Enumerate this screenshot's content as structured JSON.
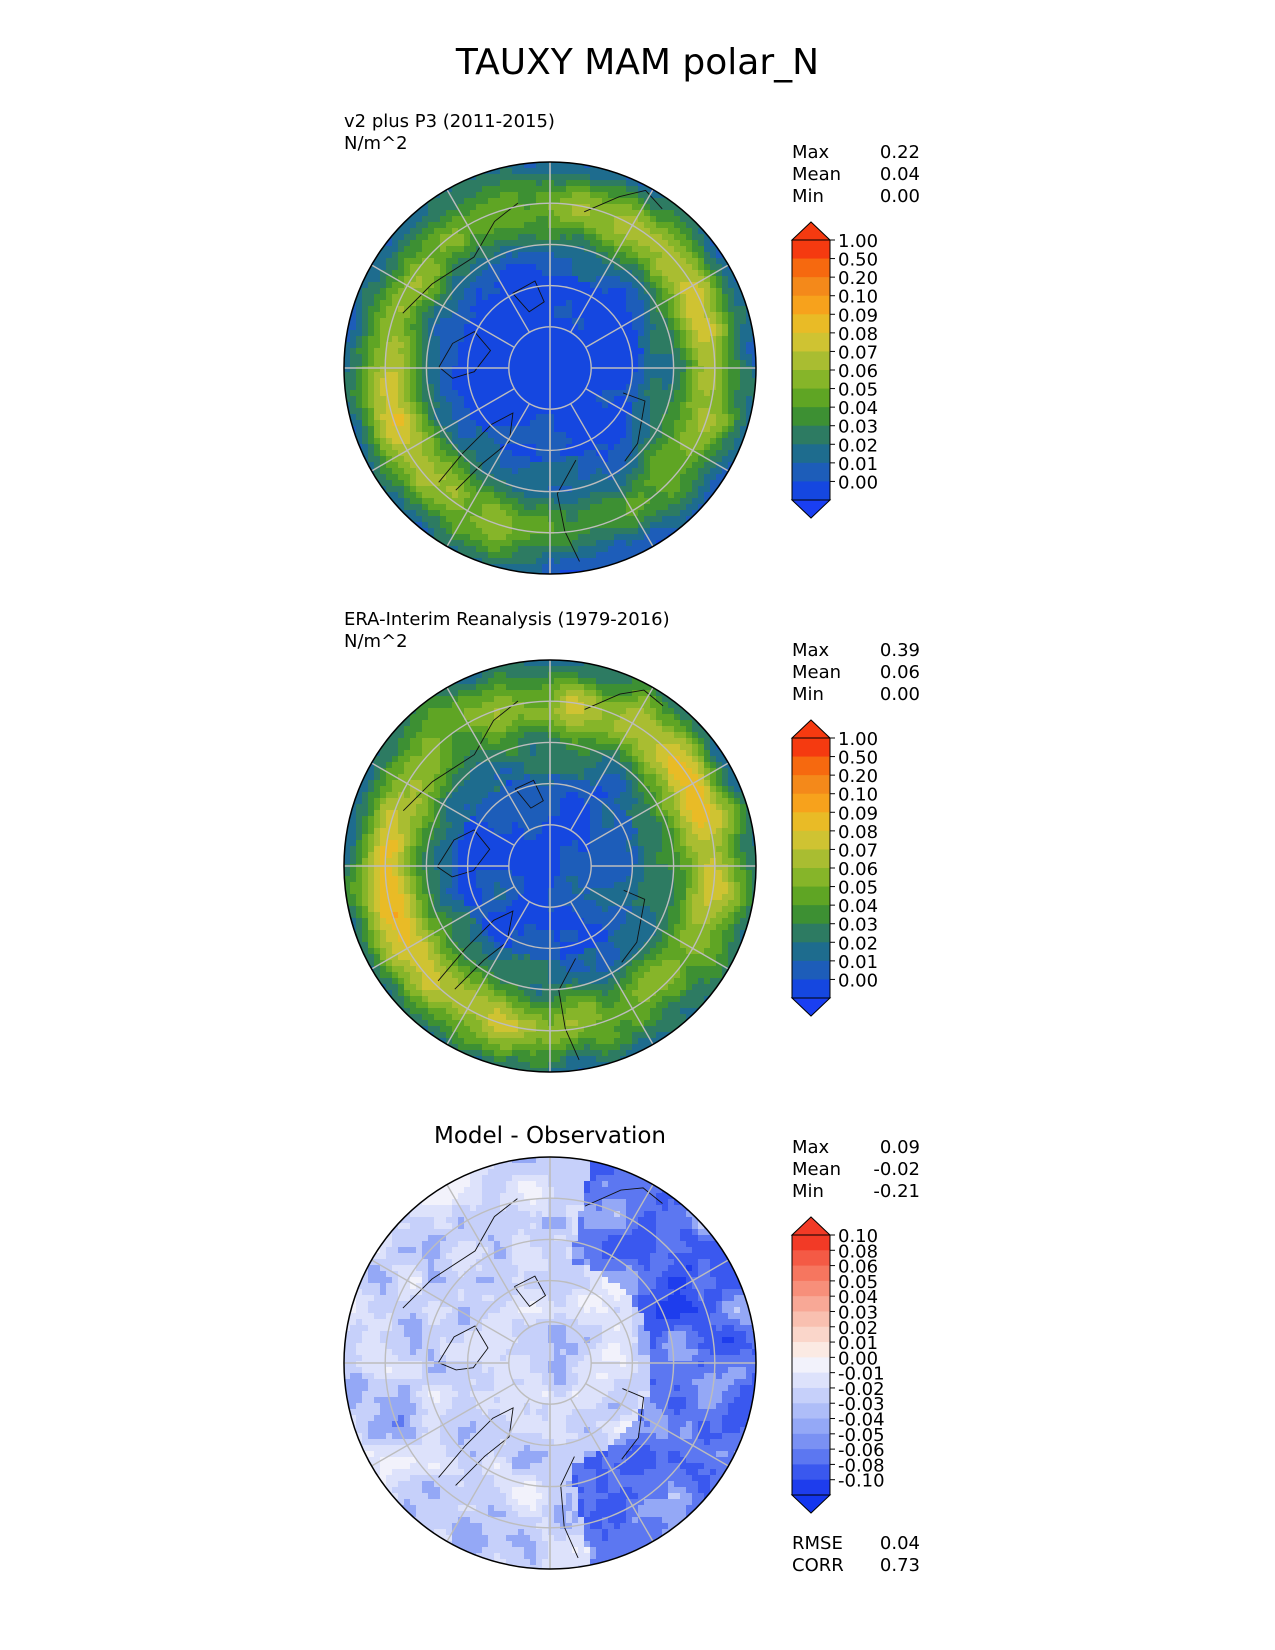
{
  "figure_title": "TAUXY MAM polar_N",
  "panels": [
    {
      "label": "v2 plus P3 (2011-2015)",
      "units": "N/m^2",
      "stats": [
        {
          "name": "Max",
          "value": "0.22"
        },
        {
          "name": "Mean",
          "value": "0.04"
        },
        {
          "name": "Min",
          "value": "0.00"
        }
      ],
      "colorbar": {
        "ticks": [
          "1.00",
          "0.50",
          "0.20",
          "0.10",
          "0.09",
          "0.08",
          "0.07",
          "0.06",
          "0.05",
          "0.04",
          "0.03",
          "0.02",
          "0.01",
          "0.00"
        ],
        "colors": [
          "#f53a10",
          "#f6690f",
          "#f4891a",
          "#f7a21c",
          "#e9bb26",
          "#cfc332",
          "#a9bd31",
          "#86b529",
          "#5fa524",
          "#3d9033",
          "#2d7b62",
          "#1e6c8e",
          "#1d5db9",
          "#1547e0"
        ],
        "over_color": "#f53a10",
        "under_color": "#1a3ff2"
      }
    },
    {
      "label": "ERA-Interim Reanalysis (1979-2016)",
      "units": "N/m^2",
      "stats": [
        {
          "name": "Max",
          "value": "0.39"
        },
        {
          "name": "Mean",
          "value": "0.06"
        },
        {
          "name": "Min",
          "value": "0.00"
        }
      ],
      "colorbar": {
        "ticks": [
          "1.00",
          "0.50",
          "0.20",
          "0.10",
          "0.09",
          "0.08",
          "0.07",
          "0.06",
          "0.05",
          "0.04",
          "0.03",
          "0.02",
          "0.01",
          "0.00"
        ],
        "colors": [
          "#f53a10",
          "#f6690f",
          "#f4891a",
          "#f7a21c",
          "#e9bb26",
          "#cfc332",
          "#a9bd31",
          "#86b529",
          "#5fa524",
          "#3d9033",
          "#2d7b62",
          "#1e6c8e",
          "#1d5db9",
          "#1547e0"
        ],
        "over_color": "#f53a10",
        "under_color": "#1a3ff2"
      }
    },
    {
      "label": "Model - Observation",
      "stats": [
        {
          "name": "Max",
          "value": "0.09"
        },
        {
          "name": "Mean",
          "value": "-0.02"
        },
        {
          "name": "Min",
          "value": "-0.21"
        }
      ],
      "colorbar": {
        "ticks": [
          "0.10",
          "0.08",
          "0.06",
          "0.05",
          "0.04",
          "0.03",
          "0.02",
          "0.01",
          "0.00",
          "-0.01",
          "-0.02",
          "-0.03",
          "-0.04",
          "-0.05",
          "-0.06",
          "-0.08",
          "-0.10"
        ],
        "colors": [
          "#f23a26",
          "#f45a45",
          "#f6765f",
          "#f78f7a",
          "#f8a896",
          "#f9c0b0",
          "#fad6ca",
          "#fbeae3",
          "#f2f2fb",
          "#dde2fb",
          "#c6d0fa",
          "#aebdf8",
          "#94a8f6",
          "#7a91f3",
          "#5c77f1",
          "#3a58ef",
          "#1e3ded"
        ],
        "over_color": "#f23a26",
        "under_color": "#1336ef"
      },
      "metrics": [
        {
          "name": "RMSE",
          "value": "0.04"
        },
        {
          "name": "CORR",
          "value": "0.73"
        }
      ]
    }
  ]
}
